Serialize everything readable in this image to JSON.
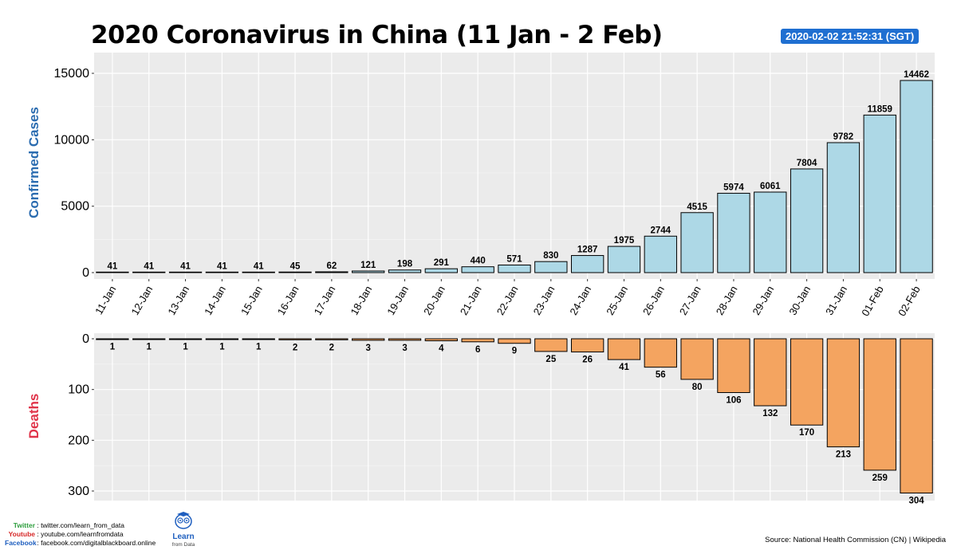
{
  "header": {
    "title": "2020 Coronavirus in China (11 Jan - 2 Feb)",
    "timestamp": "2020-02-02 21:52:31 (SGT)"
  },
  "footer": {
    "twitter_label": "Twitter",
    "twitter_value": "twitter.com/learn_from_data",
    "youtube_label": "Youtube",
    "youtube_value": "youtube.com/learnfromdata",
    "facebook_label": "Facebook",
    "facebook_value": "facebook.com/digitalblackboard.online",
    "logo_text_1": "Learn",
    "logo_text_2": "from Data",
    "source": "Source: National Health Commission (CN) | Wikipedia"
  },
  "colors": {
    "cases_fill": "#add8e6",
    "deaths_fill": "#f4a460",
    "panel_bg": "#ebebeb",
    "cases_label": "#2b6cb0",
    "deaths_label": "#e0344a",
    "twitter": "#2e9e3e",
    "youtube": "#d62828",
    "facebook": "#1f5fbf"
  },
  "chart_data": [
    {
      "type": "bar",
      "ylabel": "Confirmed Cases",
      "ylim": [
        0,
        16500
      ],
      "yticks": [
        0,
        5000,
        10000,
        15000
      ],
      "categories": [
        "11-Jan",
        "12-Jan",
        "13-Jan",
        "14-Jan",
        "15-Jan",
        "16-Jan",
        "17-Jan",
        "18-Jan",
        "19-Jan",
        "20-Jan",
        "21-Jan",
        "22-Jan",
        "23-Jan",
        "24-Jan",
        "25-Jan",
        "26-Jan",
        "27-Jan",
        "28-Jan",
        "29-Jan",
        "30-Jan",
        "31-Jan",
        "01-Feb",
        "02-Feb"
      ],
      "values": [
        41,
        41,
        41,
        41,
        41,
        45,
        62,
        121,
        198,
        291,
        440,
        571,
        830,
        1287,
        1975,
        2744,
        4515,
        5974,
        6061,
        7804,
        9782,
        11859,
        14462
      ],
      "grid": true
    },
    {
      "type": "bar",
      "ylabel": "Deaths",
      "ylim": [
        0,
        320
      ],
      "yaxis_inverted": true,
      "yticks": [
        0,
        100,
        200,
        300
      ],
      "categories": [
        "11-Jan",
        "12-Jan",
        "13-Jan",
        "14-Jan",
        "15-Jan",
        "16-Jan",
        "17-Jan",
        "18-Jan",
        "19-Jan",
        "20-Jan",
        "21-Jan",
        "22-Jan",
        "23-Jan",
        "24-Jan",
        "25-Jan",
        "26-Jan",
        "27-Jan",
        "28-Jan",
        "29-Jan",
        "30-Jan",
        "31-Jan",
        "01-Feb",
        "02-Feb"
      ],
      "values": [
        1,
        1,
        1,
        1,
        1,
        2,
        2,
        3,
        3,
        4,
        6,
        9,
        25,
        26,
        41,
        56,
        80,
        106,
        132,
        170,
        213,
        259,
        304
      ],
      "grid": true
    }
  ]
}
